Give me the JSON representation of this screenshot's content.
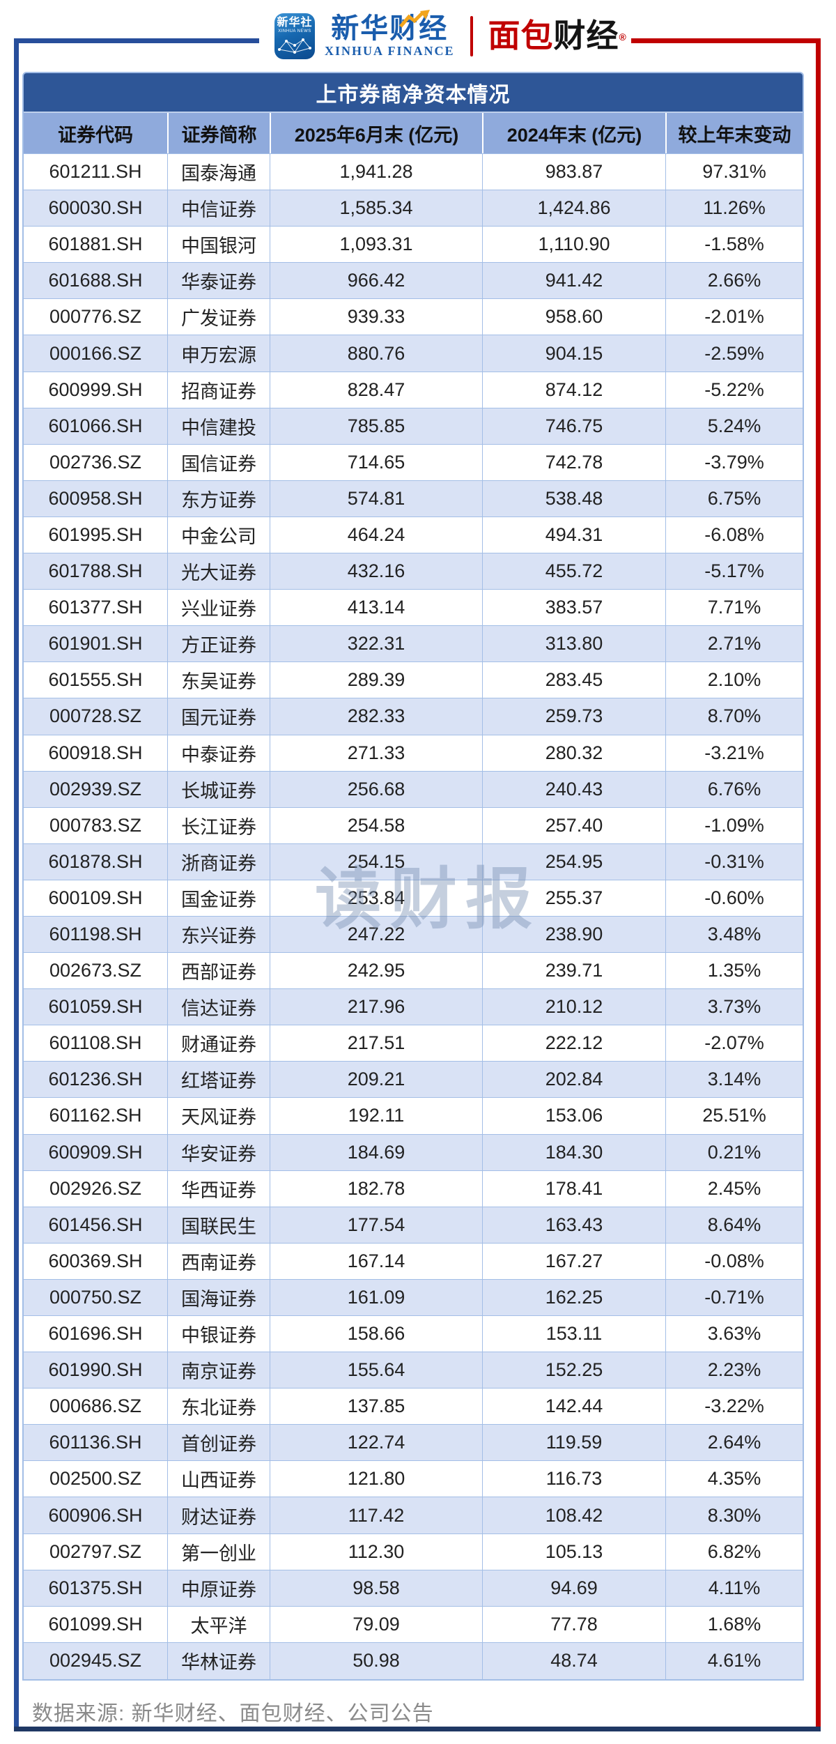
{
  "page": {
    "brand": {
      "icon_title": "新华社",
      "icon_subtitle": "XINHUA NEWS",
      "name_cn": "新华财经",
      "name_en": "XINHUA FINANCE",
      "partner_red": "面包",
      "partner_black": "财经",
      "reg_mark": "®"
    },
    "watermark": "读财报",
    "footer_source": "数据来源: 新华财经、面包财经、公司公告"
  },
  "chart_data": {
    "type": "table",
    "title": "上市券商净资本情况",
    "columns": [
      "证券代码",
      "证券简称",
      "2025年6月末 (亿元)",
      "2024年末 (亿元)",
      "较上年末变动"
    ],
    "rows": [
      [
        "601211.SH",
        "国泰海通",
        "1,941.28",
        "983.87",
        "97.31%"
      ],
      [
        "600030.SH",
        "中信证券",
        "1,585.34",
        "1,424.86",
        "11.26%"
      ],
      [
        "601881.SH",
        "中国银河",
        "1,093.31",
        "1,110.90",
        "-1.58%"
      ],
      [
        "601688.SH",
        "华泰证券",
        "966.42",
        "941.42",
        "2.66%"
      ],
      [
        "000776.SZ",
        "广发证券",
        "939.33",
        "958.60",
        "-2.01%"
      ],
      [
        "000166.SZ",
        "申万宏源",
        "880.76",
        "904.15",
        "-2.59%"
      ],
      [
        "600999.SH",
        "招商证券",
        "828.47",
        "874.12",
        "-5.22%"
      ],
      [
        "601066.SH",
        "中信建投",
        "785.85",
        "746.75",
        "5.24%"
      ],
      [
        "002736.SZ",
        "国信证券",
        "714.65",
        "742.78",
        "-3.79%"
      ],
      [
        "600958.SH",
        "东方证券",
        "574.81",
        "538.48",
        "6.75%"
      ],
      [
        "601995.SH",
        "中金公司",
        "464.24",
        "494.31",
        "-6.08%"
      ],
      [
        "601788.SH",
        "光大证券",
        "432.16",
        "455.72",
        "-5.17%"
      ],
      [
        "601377.SH",
        "兴业证券",
        "413.14",
        "383.57",
        "7.71%"
      ],
      [
        "601901.SH",
        "方正证券",
        "322.31",
        "313.80",
        "2.71%"
      ],
      [
        "601555.SH",
        "东吴证券",
        "289.39",
        "283.45",
        "2.10%"
      ],
      [
        "000728.SZ",
        "国元证券",
        "282.33",
        "259.73",
        "8.70%"
      ],
      [
        "600918.SH",
        "中泰证券",
        "271.33",
        "280.32",
        "-3.21%"
      ],
      [
        "002939.SZ",
        "长城证券",
        "256.68",
        "240.43",
        "6.76%"
      ],
      [
        "000783.SZ",
        "长江证券",
        "254.58",
        "257.40",
        "-1.09%"
      ],
      [
        "601878.SH",
        "浙商证券",
        "254.15",
        "254.95",
        "-0.31%"
      ],
      [
        "600109.SH",
        "国金证券",
        "253.84",
        "255.37",
        "-0.60%"
      ],
      [
        "601198.SH",
        "东兴证券",
        "247.22",
        "238.90",
        "3.48%"
      ],
      [
        "002673.SZ",
        "西部证券",
        "242.95",
        "239.71",
        "1.35%"
      ],
      [
        "601059.SH",
        "信达证券",
        "217.96",
        "210.12",
        "3.73%"
      ],
      [
        "601108.SH",
        "财通证券",
        "217.51",
        "222.12",
        "-2.07%"
      ],
      [
        "601236.SH",
        "红塔证券",
        "209.21",
        "202.84",
        "3.14%"
      ],
      [
        "601162.SH",
        "天风证券",
        "192.11",
        "153.06",
        "25.51%"
      ],
      [
        "600909.SH",
        "华安证券",
        "184.69",
        "184.30",
        "0.21%"
      ],
      [
        "002926.SZ",
        "华西证券",
        "182.78",
        "178.41",
        "2.45%"
      ],
      [
        "601456.SH",
        "国联民生",
        "177.54",
        "163.43",
        "8.64%"
      ],
      [
        "600369.SH",
        "西南证券",
        "167.14",
        "167.27",
        "-0.08%"
      ],
      [
        "000750.SZ",
        "国海证券",
        "161.09",
        "162.25",
        "-0.71%"
      ],
      [
        "601696.SH",
        "中银证券",
        "158.66",
        "153.11",
        "3.63%"
      ],
      [
        "601990.SH",
        "南京证券",
        "155.64",
        "152.25",
        "2.23%"
      ],
      [
        "000686.SZ",
        "东北证券",
        "137.85",
        "142.44",
        "-3.22%"
      ],
      [
        "601136.SH",
        "首创证券",
        "122.74",
        "119.59",
        "2.64%"
      ],
      [
        "002500.SZ",
        "山西证券",
        "121.80",
        "116.73",
        "4.35%"
      ],
      [
        "600906.SH",
        "财达证券",
        "117.42",
        "108.42",
        "8.30%"
      ],
      [
        "002797.SZ",
        "第一创业",
        "112.30",
        "105.13",
        "6.82%"
      ],
      [
        "601375.SH",
        "中原证券",
        "98.58",
        "94.69",
        "4.11%"
      ],
      [
        "601099.SH",
        "太平洋",
        "79.09",
        "77.78",
        "1.68%"
      ],
      [
        "002945.SZ",
        "华林证券",
        "50.98",
        "48.74",
        "4.61%"
      ]
    ]
  },
  "colors": {
    "title_bar_bg": "#2E5697",
    "header_row_bg": "#8FAADC",
    "even_row_bg": "#D9E2F5",
    "table_border": "#A3BEE6",
    "frame_blue": "#274E9B",
    "frame_navy": "#1F3864",
    "frame_red": "#C00000",
    "brand_blue": "#1A5DAD",
    "arrow_orange": "#F2A51C",
    "footer_gray": "#8A8A8A"
  }
}
